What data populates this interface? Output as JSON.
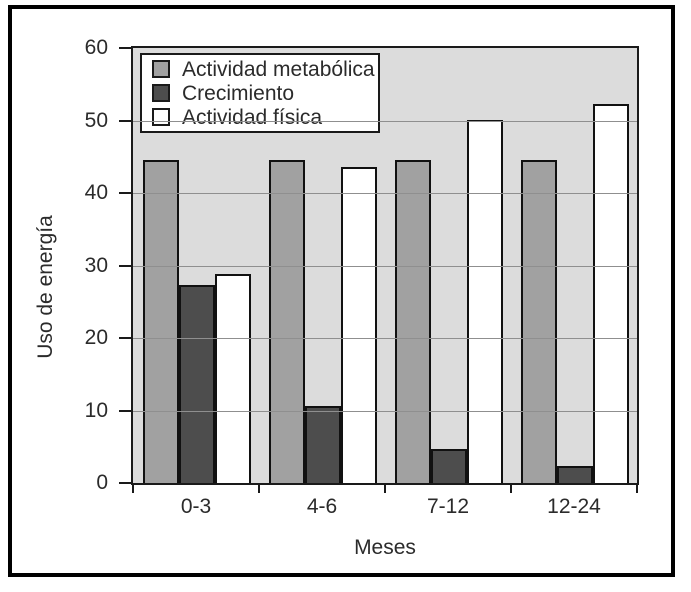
{
  "colors": {
    "plot_background": "#dcdcdc",
    "gridline": "#8f8f8f",
    "bar_border": "#111111",
    "frame_border": "#000000",
    "text": "#2b2b2b"
  },
  "chart_data": {
    "type": "bar",
    "title": "",
    "xlabel": "Meses",
    "ylabel": "Uso de energía",
    "categories": [
      "0-3",
      "4-6",
      "7-12",
      "12-24"
    ],
    "series": [
      {
        "name": "Actividad metabólica",
        "color": "#a1a1a1",
        "values": [
          44.5,
          44.5,
          44.5,
          44.5
        ]
      },
      {
        "name": "Crecimiento",
        "color": "#4d4d4d",
        "values": [
          27.3,
          10.6,
          4.7,
          2.4
        ]
      },
      {
        "name": "Actividad física",
        "color": "#ffffff",
        "values": [
          28.8,
          43.6,
          50.0,
          52.3
        ]
      }
    ],
    "ylim": [
      0,
      60
    ],
    "yticks": [
      0,
      10,
      20,
      30,
      40,
      50,
      60
    ],
    "grid": true,
    "legend_position": "top-left"
  }
}
